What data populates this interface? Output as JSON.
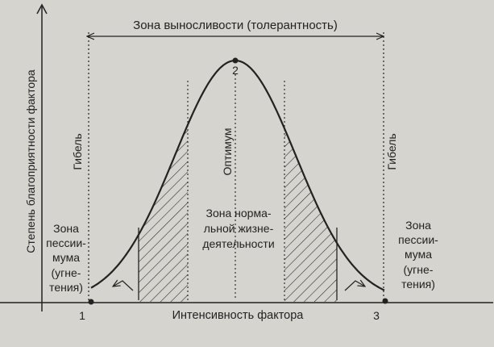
{
  "diagram": {
    "tolerance_zone_label": "Зона выносливости (толерантность)",
    "y_axis_label": "Степень благоприятности фактора",
    "x_axis_label": "Интенсивность фактора",
    "death_left_label": "Гибель",
    "death_right_label": "Гибель",
    "optimum_label": "Оптимум",
    "normal_zone_lines": [
      "Зона норма-",
      "льной жизне-",
      "деятельности"
    ],
    "pessimum_left_lines": [
      "Зона",
      "пессии-",
      "мума",
      "(угне-",
      "тения)"
    ],
    "pessimum_right_lines": [
      "Зона",
      "пессии-",
      "мума",
      "(угне-",
      "тения)"
    ],
    "point_labels": [
      "1",
      "2",
      "3"
    ]
  },
  "colors": {
    "background": "#d6d4ce",
    "ink": "#222222"
  }
}
